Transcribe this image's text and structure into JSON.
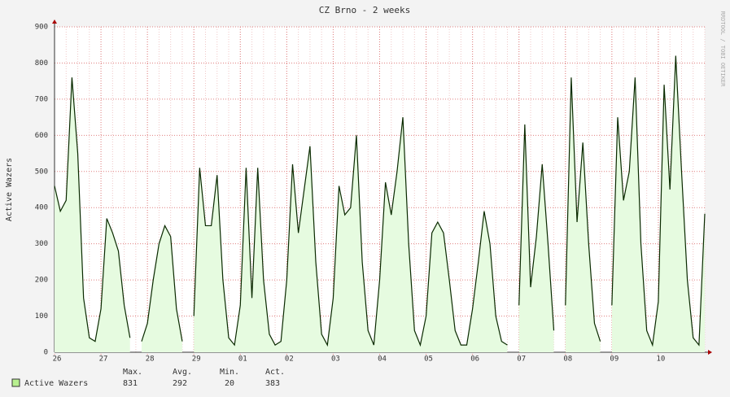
{
  "chart_data": {
    "type": "line",
    "title": "CZ Brno - 2 weeks",
    "y_label": "Active Wazers",
    "side_note": "RRDTOOL / TOBI OETIKER",
    "categories": [
      "26",
      null,
      null,
      null,
      null,
      null,
      null,
      null,
      "27",
      null,
      null,
      null,
      null,
      null,
      null,
      null,
      "28",
      null,
      null,
      null,
      null,
      null,
      null,
      null,
      "29",
      null,
      null,
      null,
      null,
      null,
      null,
      null,
      "01",
      null,
      null,
      null,
      null,
      null,
      null,
      null,
      "02",
      null,
      null,
      null,
      null,
      null,
      null,
      null,
      "03",
      null,
      null,
      null,
      null,
      null,
      null,
      null,
      "04",
      null,
      null,
      null,
      null,
      null,
      null,
      null,
      "05",
      null,
      null,
      null,
      null,
      null,
      null,
      null,
      "06",
      null,
      null,
      null,
      null,
      null,
      null,
      null,
      "07",
      null,
      null,
      null,
      null,
      null,
      null,
      null,
      "08",
      null,
      null,
      null,
      null,
      null,
      null,
      null,
      "09",
      null,
      null,
      null,
      null,
      null,
      null,
      null,
      "10",
      null,
      null,
      null,
      null,
      null,
      null,
      null,
      null
    ],
    "series": [
      {
        "name": "Active Wazers",
        "color": "#0a2a00",
        "fill": "#e6fbe0",
        "legend_color": "#b8f090",
        "values": [
          460,
          390,
          420,
          760,
          550,
          150,
          40,
          30,
          120,
          370,
          330,
          280,
          130,
          40,
          null,
          30,
          80,
          200,
          300,
          350,
          320,
          120,
          30,
          null,
          100,
          510,
          350,
          350,
          490,
          200,
          40,
          20,
          130,
          510,
          150,
          510,
          200,
          50,
          20,
          30,
          200,
          520,
          330,
          450,
          570,
          250,
          50,
          20,
          150,
          460,
          380,
          400,
          600,
          250,
          60,
          20,
          200,
          470,
          380,
          500,
          650,
          300,
          60,
          20,
          100,
          330,
          360,
          330,
          200,
          60,
          20,
          20,
          120,
          250,
          390,
          300,
          100,
          30,
          20,
          null,
          130,
          630,
          180,
          320,
          520,
          300,
          60,
          null,
          130,
          760,
          360,
          580,
          300,
          80,
          30,
          null,
          130,
          650,
          420,
          500,
          760,
          300,
          60,
          20,
          140,
          740,
          450,
          820,
          500,
          200,
          40,
          20,
          383
        ]
      }
    ],
    "stats": {
      "headers": [
        "Max.",
        "Avg.",
        "Min.",
        "Act."
      ],
      "values": [
        831,
        292,
        20,
        383
      ]
    },
    "ylim": [
      0,
      900
    ],
    "yticks": [
      0,
      100,
      200,
      300,
      400,
      500,
      600,
      700,
      800,
      900
    ],
    "grid": true
  }
}
